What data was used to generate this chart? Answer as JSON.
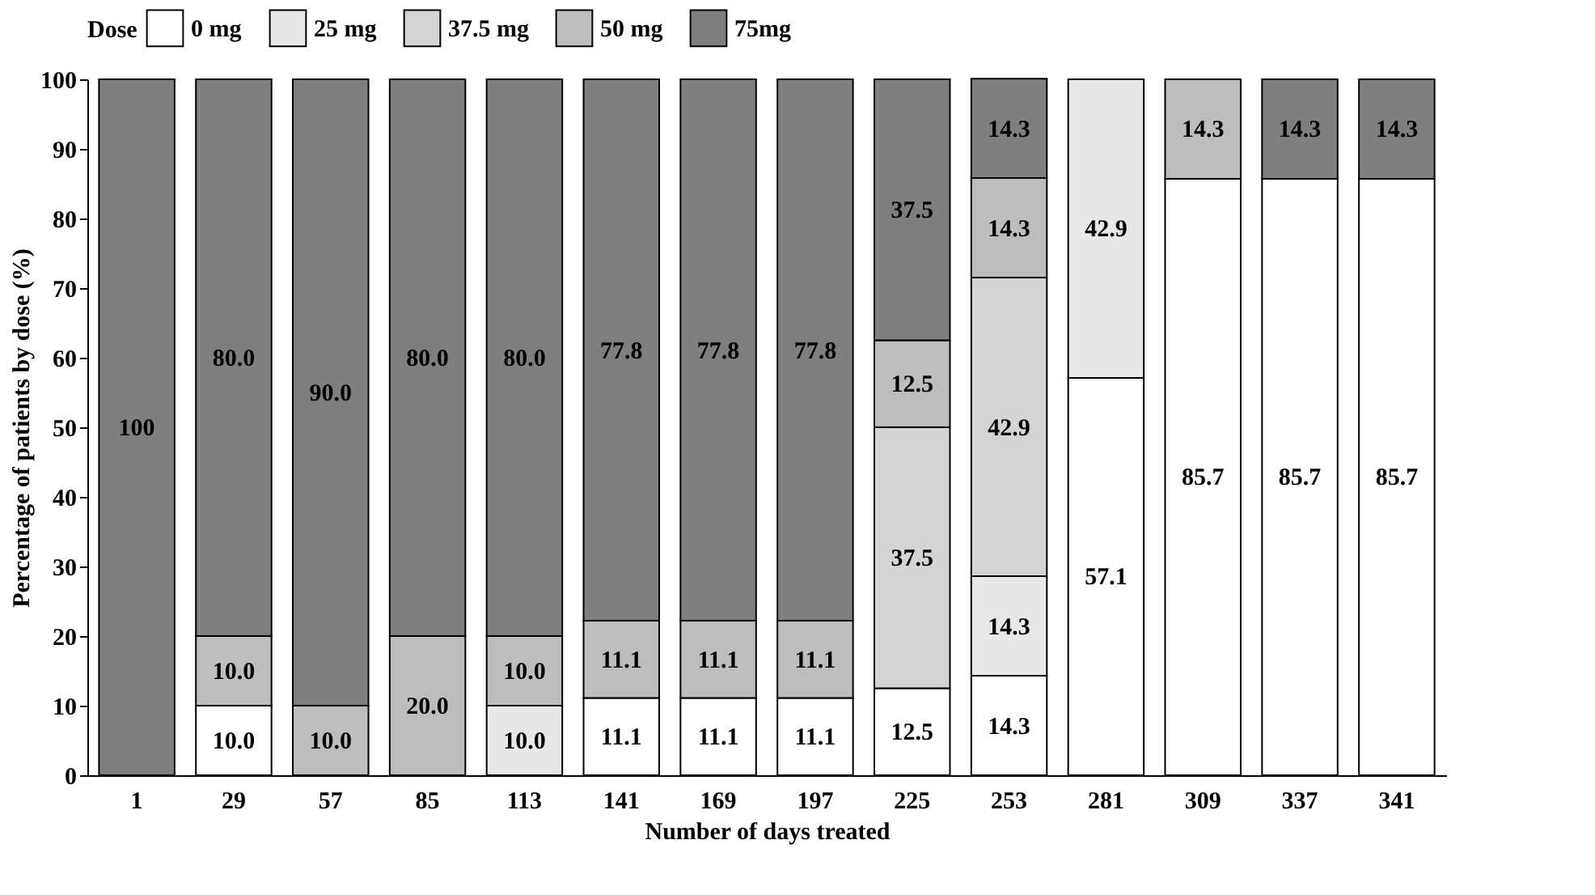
{
  "chart_data": {
    "type": "bar",
    "stacked": true,
    "xlabel": "Number of days treated",
    "ylabel": "Percentage of patients by dose (%)",
    "legend_title": "Dose",
    "categories": [
      "1",
      "29",
      "57",
      "85",
      "113",
      "141",
      "169",
      "197",
      "225",
      "253",
      "281",
      "309",
      "337",
      "341"
    ],
    "series": [
      {
        "name": "0 mg",
        "color": "#ffffff",
        "values": [
          null,
          10.0,
          null,
          null,
          null,
          11.1,
          11.1,
          11.1,
          12.5,
          14.3,
          57.1,
          85.7,
          85.7,
          85.7
        ],
        "value_labels": [
          null,
          "10.0",
          null,
          null,
          null,
          "11.1",
          "11.1",
          "11.1",
          "12.5",
          "14.3",
          "57.1",
          "85.7",
          "85.7",
          "85.7"
        ]
      },
      {
        "name": "25 mg",
        "color": "#e8e8e8",
        "values": [
          null,
          null,
          null,
          null,
          10.0,
          null,
          null,
          null,
          null,
          14.3,
          42.9,
          null,
          null,
          null
        ],
        "value_labels": [
          null,
          null,
          null,
          null,
          "10.0",
          null,
          null,
          null,
          null,
          "14.3",
          "42.9",
          null,
          null,
          null
        ]
      },
      {
        "name": "37.5 mg",
        "color": "#d4d4d4",
        "values": [
          null,
          null,
          null,
          null,
          null,
          null,
          null,
          null,
          37.5,
          42.9,
          null,
          null,
          null,
          null
        ],
        "value_labels": [
          null,
          null,
          null,
          null,
          null,
          null,
          null,
          null,
          "37.5",
          "42.9",
          null,
          null,
          null,
          null
        ]
      },
      {
        "name": "50 mg",
        "color": "#bdbdbd",
        "values": [
          null,
          10.0,
          10.0,
          20.0,
          10.0,
          11.1,
          11.1,
          11.1,
          12.5,
          14.3,
          null,
          14.3,
          null,
          null
        ],
        "value_labels": [
          null,
          "10.0",
          "10.0",
          "20.0",
          "10.0",
          "11.1",
          "11.1",
          "11.1",
          "12.5",
          "14.3",
          null,
          "14.3",
          null,
          null
        ]
      },
      {
        "name": "75mg",
        "color": "#7f7f7f",
        "values": [
          100,
          80.0,
          90.0,
          80.0,
          80.0,
          77.8,
          77.8,
          77.8,
          37.5,
          14.3,
          null,
          null,
          14.3,
          14.3
        ],
        "value_labels": [
          "100",
          "80.0",
          "90.0",
          "80.0",
          "80.0",
          "77.8",
          "77.8",
          "77.8",
          "37.5",
          "14.3",
          null,
          null,
          "14.3",
          "14.3"
        ]
      }
    ],
    "ylim": [
      0,
      100
    ],
    "yticks": [
      0,
      10,
      20,
      30,
      40,
      50,
      60,
      70,
      80,
      90,
      100
    ],
    "grid": false,
    "legend": "top"
  }
}
